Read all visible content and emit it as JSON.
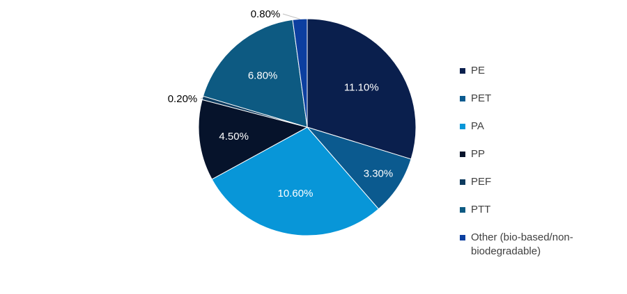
{
  "chart_data": {
    "type": "pie",
    "categories": [
      "PE",
      "PET",
      "PA",
      "PP",
      "PEF",
      "PTT",
      "Other (bio-based/non-biodegradable)"
    ],
    "values": [
      11.1,
      3.3,
      10.6,
      4.5,
      0.2,
      6.8,
      0.8
    ],
    "labels": [
      "11.10%",
      "3.30%",
      "10.60%",
      "4.50%",
      "0.20%",
      "6.80%",
      "0.80%"
    ],
    "colors": [
      "#0a1f4d",
      "#0b5a8f",
      "#0896d8",
      "#06132b",
      "#0e3b5f",
      "#0d5a82",
      "#0c3fa0"
    ],
    "legend_position": "right",
    "title": "",
    "start_angle": "12 o'clock, clockwise"
  }
}
